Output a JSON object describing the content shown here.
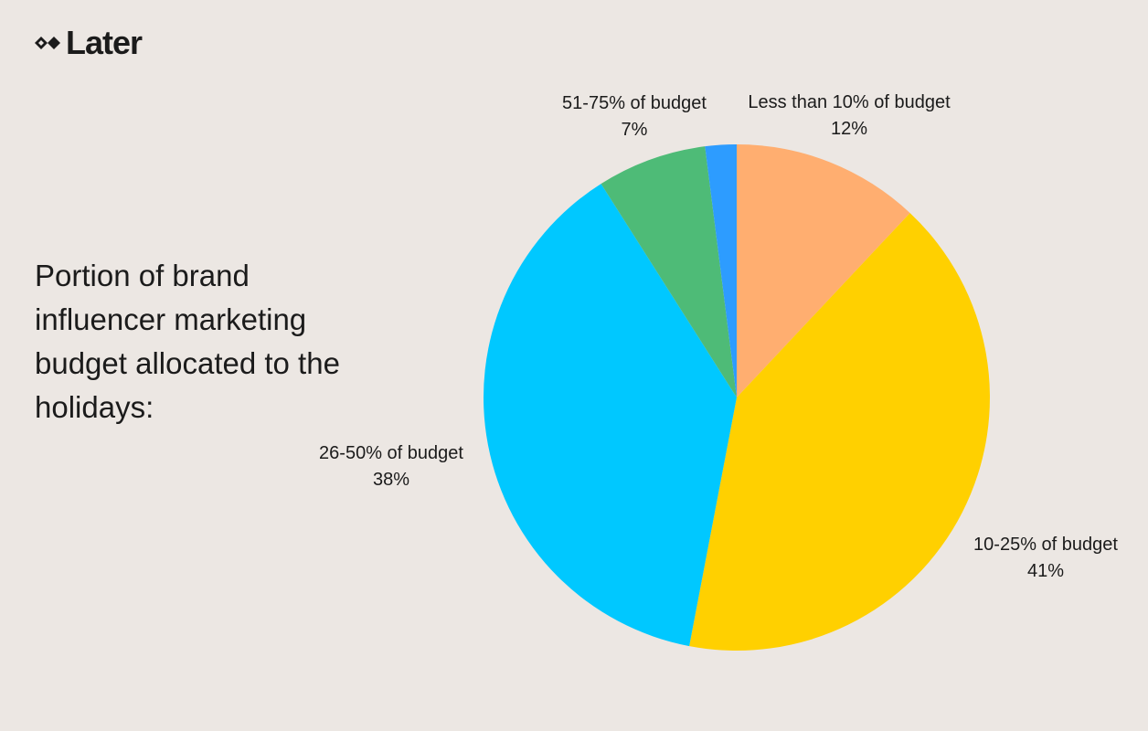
{
  "logo": {
    "text": "Later",
    "icon": "later-diamond-logo-icon"
  },
  "chart_data": {
    "type": "pie",
    "title": "Portion of brand influencer marketing budget allocated to the holidays:",
    "start_angle_deg": 0,
    "direction": "clockwise",
    "slices": [
      {
        "label": "Less than 10% of budget",
        "percent_label": "12%",
        "value": 12,
        "color": "#FFAE70"
      },
      {
        "label": "10-25% of budget",
        "percent_label": "41%",
        "value": 41,
        "color": "#FFD000"
      },
      {
        "label": "26-50% of budget",
        "percent_label": "38%",
        "value": 38,
        "color": "#00C8FF"
      },
      {
        "label": "51-75% of budget",
        "percent_label": "7%",
        "value": 7,
        "color": "#4EBB77"
      },
      {
        "label": "",
        "percent_label": "",
        "value": 2,
        "color": "#2D9CFF"
      }
    ]
  }
}
